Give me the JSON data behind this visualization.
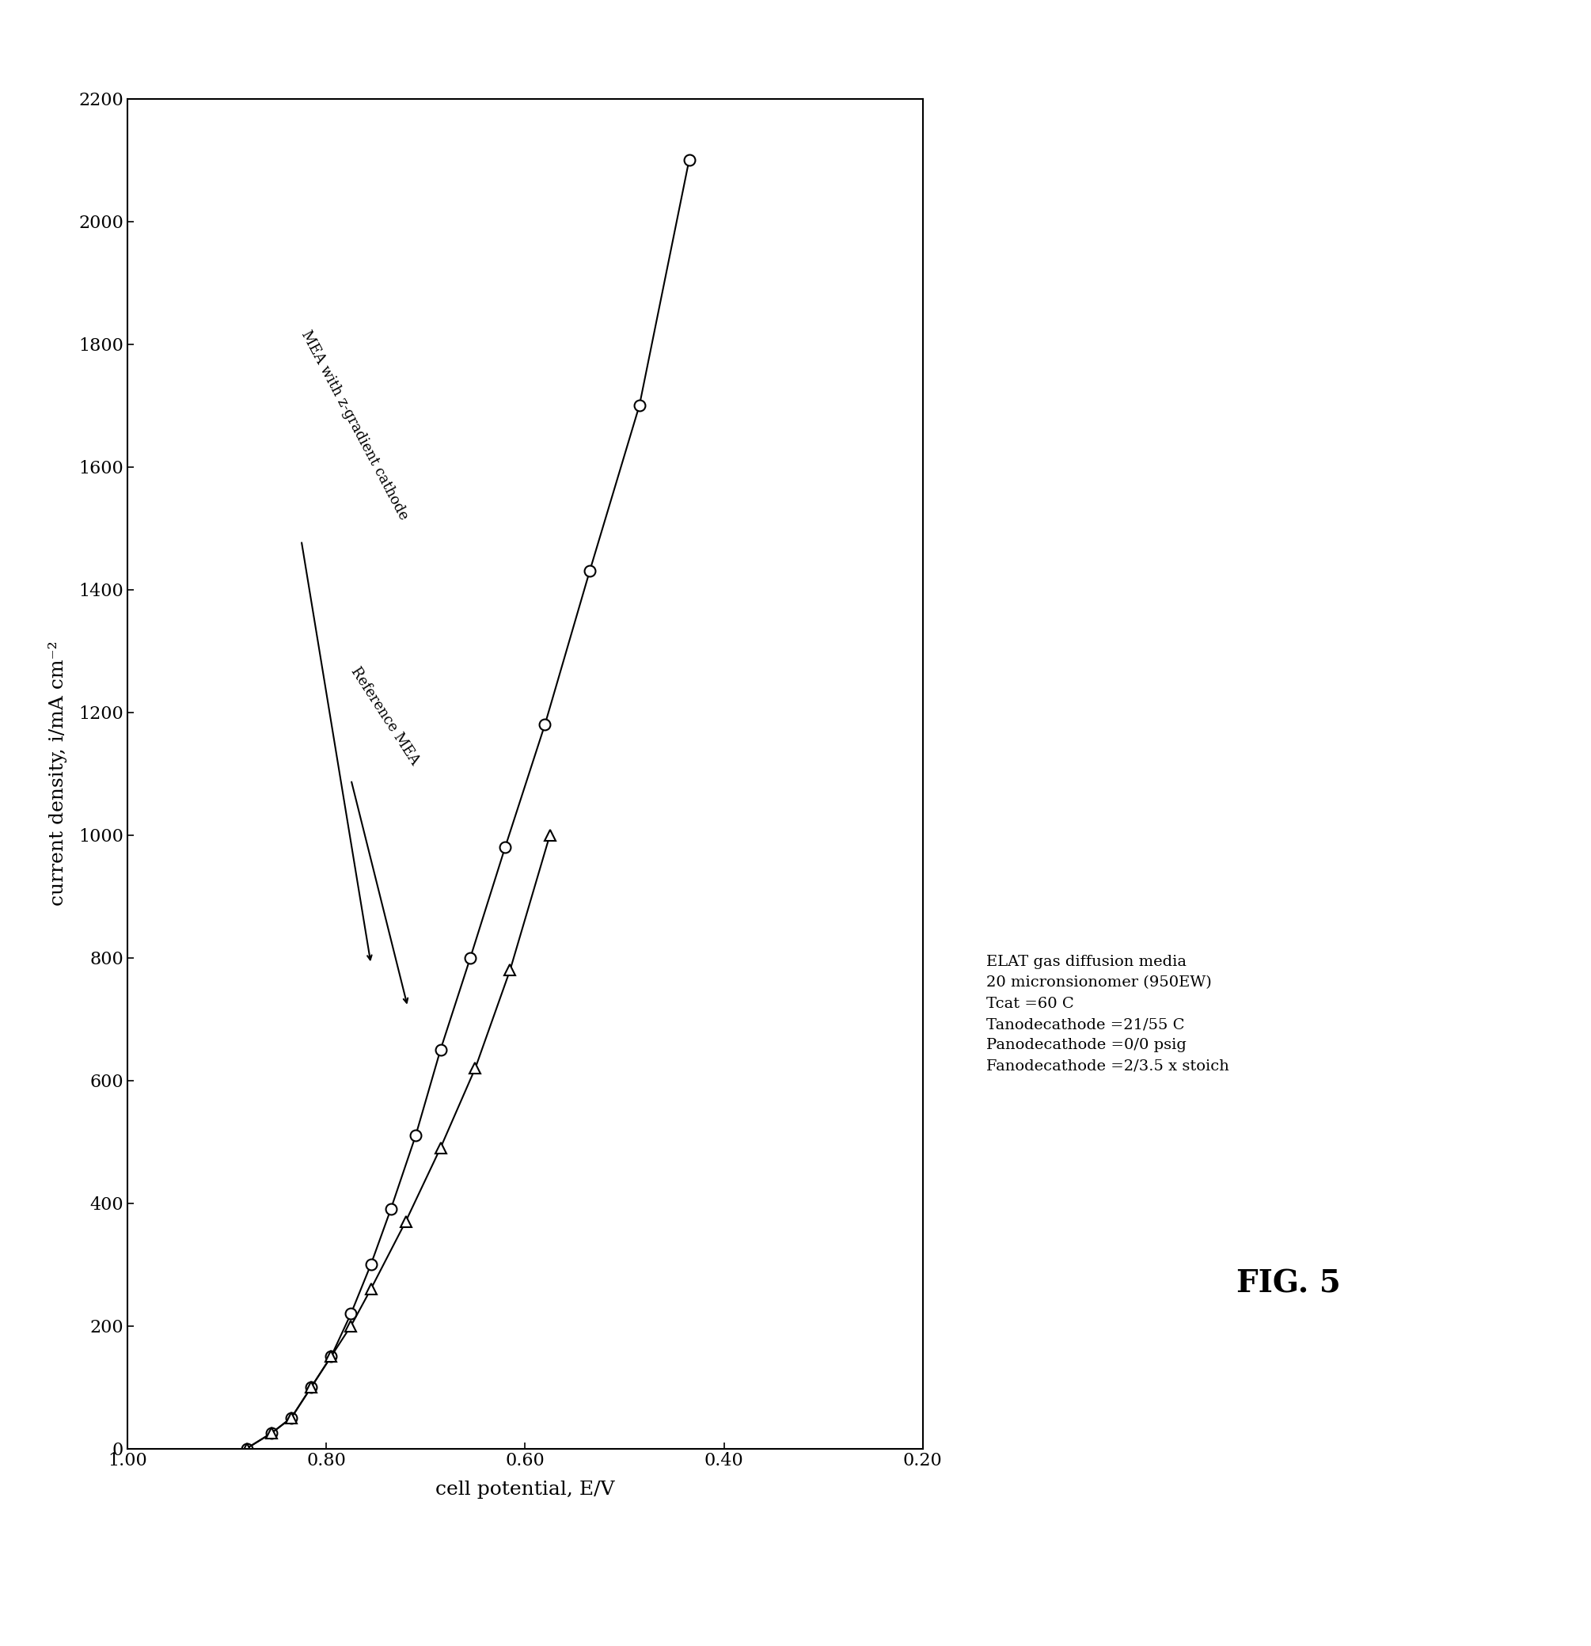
{
  "circle_series": {
    "label": "MEA with z-gradient cathode",
    "x": [
      0.88,
      0.855,
      0.835,
      0.815,
      0.795,
      0.775,
      0.755,
      0.735,
      0.71,
      0.685,
      0.655,
      0.62,
      0.58,
      0.535,
      0.485,
      0.435
    ],
    "y": [
      0,
      25,
      50,
      100,
      150,
      220,
      300,
      390,
      510,
      650,
      800,
      980,
      1180,
      1430,
      1700,
      2100
    ]
  },
  "triangle_series": {
    "label": "Reference MEA",
    "x": [
      0.88,
      0.855,
      0.835,
      0.815,
      0.795,
      0.775,
      0.755,
      0.72,
      0.685,
      0.65,
      0.615,
      0.575
    ],
    "y": [
      0,
      25,
      50,
      100,
      150,
      200,
      260,
      370,
      490,
      620,
      780,
      1000
    ]
  },
  "xlabel": "cell potential, E/V",
  "ylabel": "current density, i/mA cm⁻²",
  "xlim": [
    0.2,
    1.0
  ],
  "ylim": [
    0,
    2200
  ],
  "xticks": [
    0.2,
    0.4,
    0.6,
    0.8,
    1.0
  ],
  "yticks": [
    0,
    200,
    400,
    600,
    800,
    1000,
    1200,
    1400,
    1600,
    1800,
    2000,
    2200
  ],
  "conditions": [
    "ELAT gas diffusion media",
    "20 micronsionomer (950EW)",
    "Tcat =60 C",
    "Tanodecathode =21/55 C",
    "Panodecathode =0/0 psig",
    "Fanodecathode =2/3.5 x stoich"
  ],
  "figure_label": "FIG. 5",
  "background_color": "#ffffff",
  "line_color": "#000000",
  "marker_size": 10,
  "font_size_labels": 18,
  "font_size_ticks": 16,
  "font_size_conditions": 14,
  "font_size_fig": 28
}
